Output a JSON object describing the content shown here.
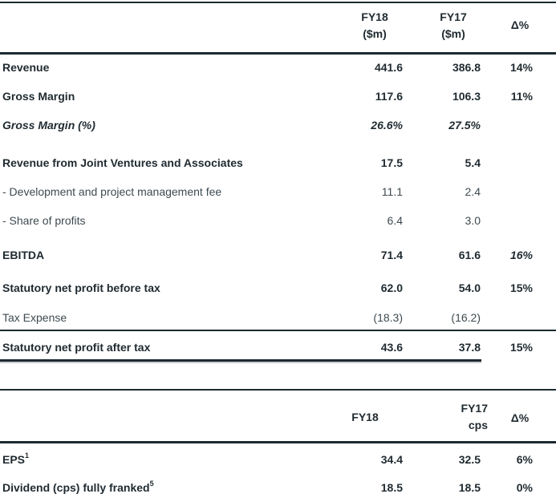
{
  "table1": {
    "headers": {
      "fy18": [
        "FY18",
        "($m)"
      ],
      "fy17": [
        "FY17",
        "($m)"
      ],
      "delta": "Δ%"
    },
    "rows": [
      {
        "label": "Revenue",
        "fy18": "441.6",
        "fy17": "386.8",
        "delta": "14%"
      },
      {
        "label": "Gross Margin",
        "fy18": "117.6",
        "fy17": "106.3",
        "delta": "11%"
      },
      {
        "label": "Gross Margin (%)",
        "fy18": "26.6%",
        "fy17": "27.5%",
        "delta": ""
      },
      {
        "label": "Revenue from Joint Ventures and Associates",
        "fy18": "17.5",
        "fy17": "5.4",
        "delta": ""
      },
      {
        "label": " - Development and project management fee",
        "fy18": "11.1",
        "fy17": "2.4",
        "delta": ""
      },
      {
        "label": " - Share of profits",
        "fy18": "6.4",
        "fy17": "3.0",
        "delta": ""
      },
      {
        "label": "EBITDA",
        "fy18": "71.4",
        "fy17": "61.6",
        "delta": "16%"
      },
      {
        "label": "Statutory net profit before tax",
        "fy18": "62.0",
        "fy17": "54.0",
        "delta": "15%"
      },
      {
        "label": "Tax Expense",
        "fy18": "(18.3)",
        "fy17": "(16.2)",
        "delta": ""
      },
      {
        "label": "Statutory net profit after tax",
        "fy18": "43.6",
        "fy17": "37.8",
        "delta": "15%"
      }
    ]
  },
  "table2": {
    "headers": {
      "fy18": "FY18",
      "fy17": [
        "FY17",
        "cps"
      ],
      "delta": "Δ%"
    },
    "rows": [
      {
        "label": "EPS",
        "sup": "1",
        "fy18": "34.4",
        "fy17": "32.5",
        "delta": "6%"
      },
      {
        "label": "Dividend (cps) fully franked",
        "sup": "5",
        "fy18": "18.5",
        "fy17": "18.5",
        "delta": "0%"
      }
    ]
  }
}
